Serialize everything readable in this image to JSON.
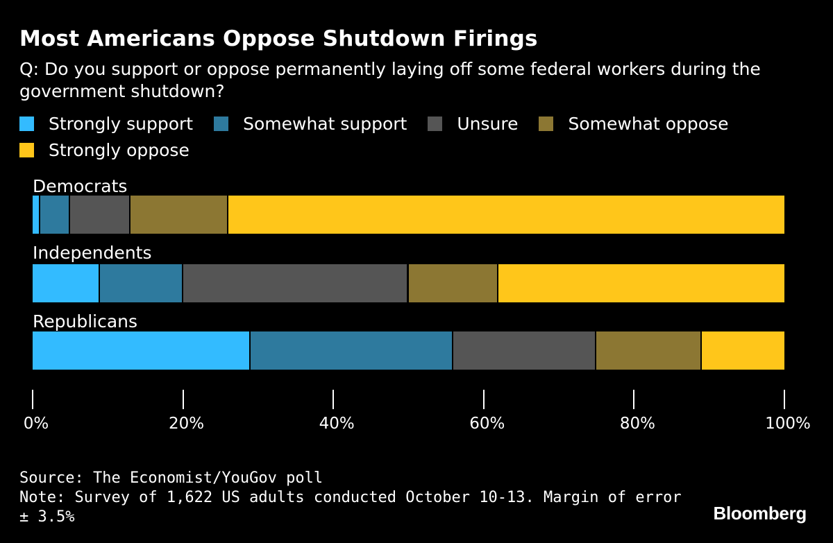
{
  "header": {
    "title": "Most Americans Oppose Shutdown Firings",
    "subtitle": "Q: Do you support or oppose permanently laying off some federal workers during the government shutdown?"
  },
  "chart_data": {
    "type": "bar",
    "orientation": "horizontal",
    "stacked": true,
    "categories": [
      "Democrats",
      "Independents",
      "Republicans"
    ],
    "series": [
      {
        "name": "Strongly support",
        "color": "#33bbff",
        "values": [
          1,
          9,
          29
        ]
      },
      {
        "name": "Somewhat support",
        "color": "#2e7a9e",
        "values": [
          4,
          11,
          27
        ]
      },
      {
        "name": "Unsure",
        "color": "#555555",
        "values": [
          8,
          30,
          19
        ]
      },
      {
        "name": "Somewhat oppose",
        "color": "#8c7733",
        "values": [
          13,
          12,
          14
        ]
      },
      {
        "name": "Strongly oppose",
        "color": "#ffc61a",
        "values": [
          74,
          38,
          11
        ]
      }
    ],
    "xlim": [
      0,
      100
    ],
    "xticks": [
      "0%",
      "20%",
      "40%",
      "60%",
      "80%",
      "100%"
    ],
    "xtick_values": [
      0,
      20,
      40,
      60,
      80,
      100
    ],
    "legend_position": "top"
  },
  "footer": {
    "source": "Source: The Economist/YouGov poll",
    "note": "Note: Survey of 1,622 US adults conducted October 10-13. Margin of error ± 3.5%",
    "brand": "Bloomberg"
  }
}
